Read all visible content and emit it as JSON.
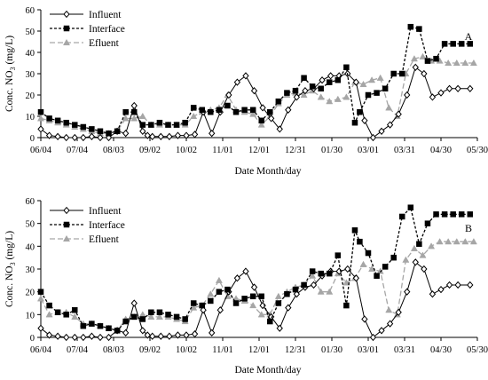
{
  "chart_data": [
    {
      "type": "line",
      "panel_label": "A",
      "ylabel": "Conc. NO3  (mg/L)",
      "ylabel_main": "Conc. NO",
      "ylabel_sub": "3",
      "ylabel_unit": " (mg/L)",
      "xlabel": "Date Month/day",
      "ylim": [
        0,
        60
      ],
      "yticks": [
        "0",
        "10",
        "20",
        "30",
        "40",
        "50",
        "60"
      ],
      "xlim": [
        0,
        360
      ],
      "xtick_positions": [
        0,
        30,
        60,
        90,
        120,
        150,
        180,
        210,
        240,
        270,
        300,
        330,
        360
      ],
      "xtick_labels": [
        "06/04",
        "07/04",
        "08/03",
        "09/02",
        "10/02",
        "11/01",
        "12/01",
        "12/31",
        "01/30",
        "03/01",
        "03/31",
        "04/30",
        "05/30"
      ],
      "legend_position": "top-left",
      "series": [
        {
          "name": "Influent",
          "color": "#000000",
          "dash": "solid",
          "marker": "diamond",
          "x": [
            0,
            7,
            14,
            21,
            28,
            35,
            42,
            49,
            56,
            63,
            70,
            77,
            84,
            88,
            92,
            99,
            106,
            113,
            120,
            127,
            134,
            141,
            148,
            155,
            162,
            169,
            176,
            183,
            190,
            197,
            204,
            211,
            218,
            225,
            232,
            239,
            246,
            253,
            260,
            267,
            274,
            281,
            288,
            295,
            302,
            309,
            316,
            323,
            330,
            337,
            344,
            354
          ],
          "y": [
            4,
            1,
            0.5,
            0,
            0,
            0,
            0.5,
            0,
            0,
            3,
            2,
            15,
            3,
            1,
            0.5,
            0.5,
            0.5,
            1,
            1,
            1.5,
            12,
            2,
            12,
            20,
            26,
            29,
            22,
            14,
            9,
            4,
            13,
            19,
            22,
            23,
            27,
            29,
            29,
            30,
            26,
            8,
            0,
            3,
            6,
            11,
            20,
            33,
            30,
            19,
            21,
            23,
            23,
            23
          ]
        },
        {
          "name": "Interface",
          "color": "#000000",
          "dash": "dashed",
          "marker": "square",
          "x": [
            0,
            7,
            14,
            21,
            28,
            35,
            42,
            49,
            56,
            63,
            70,
            77,
            84,
            91,
            98,
            105,
            112,
            119,
            126,
            133,
            140,
            147,
            154,
            161,
            168,
            175,
            182,
            189,
            196,
            203,
            210,
            217,
            224,
            231,
            238,
            245,
            252,
            259,
            263,
            270,
            277,
            284,
            291,
            298,
            305,
            312,
            319,
            326,
            333,
            340,
            347,
            354
          ],
          "y": [
            12,
            9,
            8,
            7,
            6,
            5,
            4,
            3,
            2,
            3,
            12,
            12,
            6,
            6,
            7,
            6,
            6,
            7,
            14,
            13,
            12,
            13,
            15,
            12,
            13,
            13,
            8,
            12,
            17,
            21,
            22,
            28,
            24,
            23,
            26,
            27,
            33,
            7,
            12,
            20,
            21,
            23,
            30,
            30,
            52,
            51,
            36,
            37,
            44,
            44,
            44,
            44
          ]
        },
        {
          "name": "Efluent",
          "color": "#a6a6a6",
          "dash": "dashed",
          "marker": "triangle",
          "x": [
            0,
            7,
            14,
            21,
            28,
            35,
            42,
            49,
            56,
            63,
            70,
            77,
            84,
            91,
            98,
            105,
            112,
            119,
            126,
            133,
            140,
            147,
            154,
            161,
            168,
            175,
            182,
            189,
            196,
            203,
            210,
            217,
            224,
            231,
            238,
            245,
            252,
            259,
            266,
            273,
            280,
            287,
            294,
            301,
            308,
            315,
            322,
            329,
            336,
            343,
            350,
            357
          ],
          "y": [
            9,
            8,
            7,
            6,
            5,
            4,
            3,
            2,
            2,
            3,
            9,
            9,
            10,
            6,
            6,
            6,
            6,
            6,
            10,
            12,
            13,
            14,
            20,
            13,
            12,
            11,
            6,
            10,
            16,
            20,
            21,
            20,
            22,
            19,
            17,
            18,
            19,
            26,
            25,
            27,
            28,
            14,
            10,
            30,
            37,
            38,
            36,
            36,
            35,
            35,
            35,
            35
          ]
        }
      ]
    },
    {
      "type": "line",
      "panel_label": "B",
      "ylabel": "Conc. NO3  (mg/L)",
      "ylabel_main": "Conc. NO",
      "ylabel_sub": "3",
      "ylabel_unit": " (mg/L)",
      "xlabel": "Date Month/day",
      "ylim": [
        0,
        60
      ],
      "yticks": [
        "0",
        "10",
        "20",
        "30",
        "40",
        "50",
        "60"
      ],
      "xlim": [
        0,
        360
      ],
      "xtick_positions": [
        0,
        30,
        60,
        90,
        120,
        150,
        180,
        210,
        240,
        270,
        300,
        330,
        360
      ],
      "xtick_labels": [
        "06/04",
        "07/04",
        "08/03",
        "09/02",
        "10/02",
        "11/01",
        "12/01",
        "12/31",
        "01/30",
        "03/01",
        "03/31",
        "04/30",
        "05/30"
      ],
      "legend_position": "top-left",
      "series": [
        {
          "name": "Influent",
          "color": "#000000",
          "dash": "solid",
          "marker": "diamond",
          "x": [
            0,
            7,
            14,
            21,
            28,
            35,
            42,
            49,
            56,
            63,
            70,
            77,
            84,
            88,
            92,
            99,
            106,
            113,
            120,
            127,
            134,
            141,
            148,
            155,
            162,
            169,
            176,
            183,
            190,
            197,
            204,
            211,
            218,
            225,
            232,
            239,
            246,
            253,
            260,
            267,
            274,
            281,
            288,
            295,
            302,
            309,
            316,
            323,
            330,
            337,
            344,
            354
          ],
          "y": [
            4,
            1,
            0.5,
            0,
            0,
            0,
            0.5,
            0,
            0,
            3,
            2,
            15,
            3,
            1,
            0.5,
            0.5,
            0.5,
            1,
            1,
            1.5,
            12,
            2,
            12,
            20,
            26,
            29,
            22,
            14,
            9,
            4,
            13,
            19,
            22,
            23,
            27,
            29,
            29,
            30,
            26,
            8,
            0,
            3,
            6,
            11,
            20,
            33,
            30,
            19,
            21,
            23,
            23,
            23
          ]
        },
        {
          "name": "Interface",
          "color": "#000000",
          "dash": "dashed",
          "marker": "square",
          "x": [
            0,
            7,
            14,
            21,
            28,
            35,
            42,
            49,
            56,
            63,
            70,
            77,
            84,
            91,
            98,
            105,
            112,
            119,
            126,
            133,
            140,
            147,
            154,
            161,
            168,
            175,
            182,
            189,
            196,
            203,
            210,
            217,
            224,
            231,
            238,
            245,
            252,
            259,
            263,
            270,
            277,
            284,
            291,
            298,
            305,
            312,
            319,
            326,
            333,
            340,
            347,
            354
          ],
          "y": [
            20,
            14,
            11,
            10,
            12,
            5,
            6,
            5,
            4,
            3,
            7,
            9,
            8,
            11,
            11,
            10,
            9,
            8,
            15,
            14,
            16,
            20,
            21,
            15,
            17,
            18,
            18,
            7,
            15,
            19,
            21,
            23,
            29,
            28,
            28,
            36,
            14,
            47,
            42,
            37,
            27,
            31,
            35,
            53,
            57,
            41,
            50,
            54,
            54,
            54,
            54,
            54
          ]
        },
        {
          "name": "Efluent",
          "color": "#a6a6a6",
          "dash": "dashed",
          "marker": "triangle",
          "x": [
            0,
            7,
            14,
            21,
            28,
            35,
            42,
            49,
            56,
            63,
            70,
            77,
            84,
            91,
            98,
            105,
            112,
            119,
            126,
            133,
            140,
            147,
            154,
            161,
            168,
            175,
            182,
            189,
            196,
            203,
            210,
            217,
            224,
            231,
            238,
            245,
            252,
            259,
            266,
            273,
            280,
            287,
            294,
            301,
            308,
            315,
            322,
            329,
            336,
            343,
            350,
            357
          ],
          "y": [
            17,
            10,
            11,
            11,
            9,
            6,
            6,
            5,
            4,
            3,
            8,
            9,
            10,
            9,
            9,
            9,
            8,
            7,
            13,
            14,
            19,
            25,
            18,
            17,
            16,
            14,
            10,
            10,
            18,
            20,
            22,
            23,
            27,
            20,
            20,
            28,
            24,
            26,
            32,
            30,
            29,
            12,
            10,
            34,
            39,
            36,
            40,
            42,
            42,
            42,
            42,
            42
          ]
        }
      ]
    }
  ]
}
